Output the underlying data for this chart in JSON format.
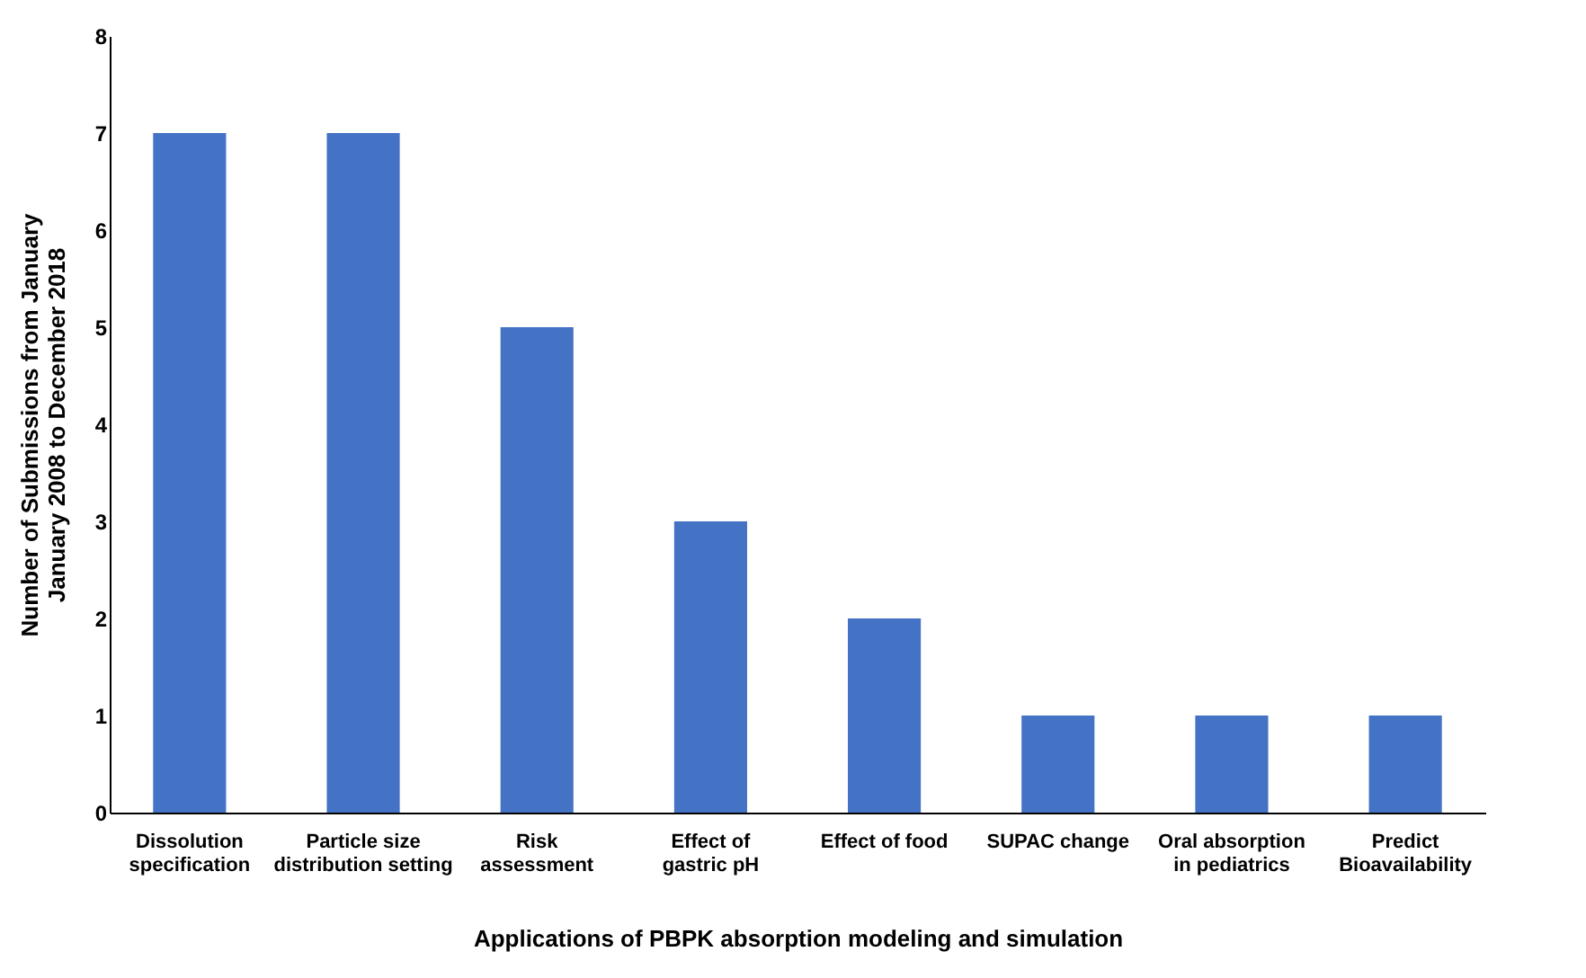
{
  "chart_data": {
    "type": "bar",
    "xlabel": "Applications of PBPK absorption modeling and simulation",
    "ylabel": "Number of Submissions from January January 2008 to December 2018",
    "categories": [
      "Dissolution specification",
      "Particle size distribution setting",
      "Risk assessment",
      "Effect of gastric pH",
      "Effect of food",
      "SUPAC change",
      "Oral absorption in pediatrics",
      "Predict Bioavailability"
    ],
    "values": [
      7,
      7,
      5,
      3,
      2,
      1,
      1,
      1
    ],
    "color": "#4472c4",
    "ylim": [
      0,
      8
    ],
    "yticks": [
      0,
      1,
      2,
      3,
      4,
      5,
      6,
      7,
      8
    ],
    "grid": false
  }
}
